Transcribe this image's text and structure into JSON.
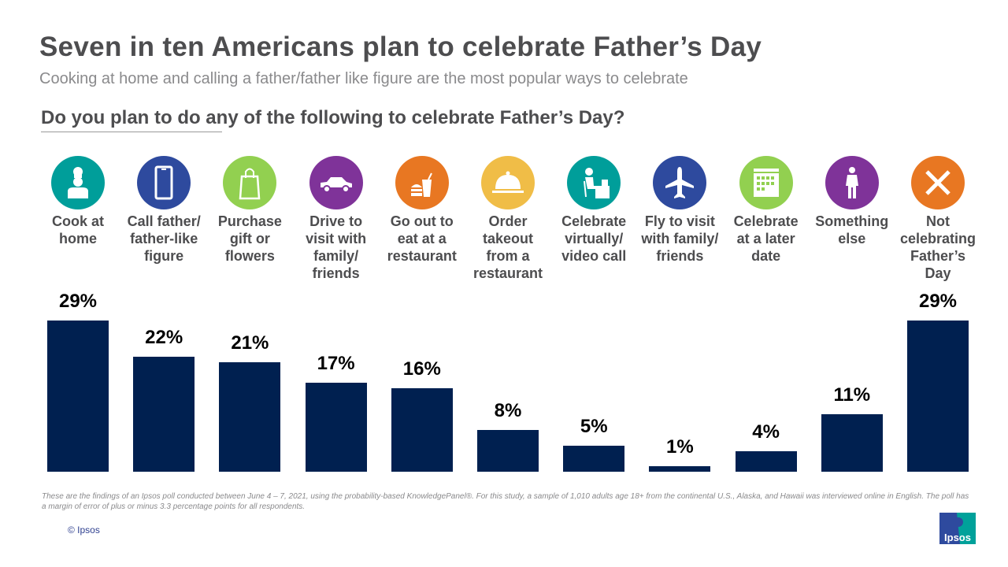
{
  "title": "Seven in ten Americans plan to celebrate Father’s Day",
  "subtitle": "Cooking at home and calling a father/father like figure are the most popular ways to celebrate",
  "question": "Do you plan to do any of the following to celebrate Father’s Day?",
  "chart_data": {
    "type": "bar",
    "categories": [
      "Cook at\nhome",
      "Call father/\nfather-like\nfigure",
      "Purchase\ngift or\nflowers",
      "Drive to\nvisit with\nfamily/\nfriends",
      "Go out to\neat at a\nrestaurant",
      "Order\ntakeout\nfrom a\nrestaurant",
      "Celebrate\nvirtually/\nvideo call",
      "Fly to visit\nwith family/\nfriends",
      "Celebrate\nat a later\ndate",
      "Something\nelse",
      "Not\ncelebrating\nFather’s\nDay"
    ],
    "values": [
      29,
      22,
      21,
      17,
      16,
      8,
      5,
      1,
      4,
      11,
      29
    ],
    "value_labels": [
      "29%",
      "22%",
      "21%",
      "17%",
      "16%",
      "8%",
      "5%",
      "1%",
      "4%",
      "11%",
      "29%"
    ],
    "icons": [
      "chef-icon",
      "phone-icon",
      "shopping-bag-icon",
      "car-icon",
      "fast-food-icon",
      "cloche-icon",
      "desk-computer-icon",
      "airplane-icon",
      "calendar-icon",
      "person-icon",
      "x-icon"
    ],
    "icon_colors": [
      "#009e9a",
      "#2e4a9e",
      "#92d050",
      "#7f3399",
      "#e87722",
      "#f0bd47",
      "#009e9a",
      "#2e4a9e",
      "#92d050",
      "#7f3399",
      "#e87722"
    ],
    "bar_color": "#002050",
    "ylim": [
      0,
      30
    ],
    "grid": false
  },
  "footnote": "These are the findings of an Ipsos poll conducted between June 4 – 7, 2021, using the probability-based KnowledgePanel®. For this study, a sample of 1,010 adults age 18+ from the continental U.S., Alaska, and Hawaii was interviewed online in English. The poll has a margin of error of plus or minus 3.3 percentage points for all respondents.",
  "copyright": "© Ipsos",
  "logo_text": "Ipsos"
}
